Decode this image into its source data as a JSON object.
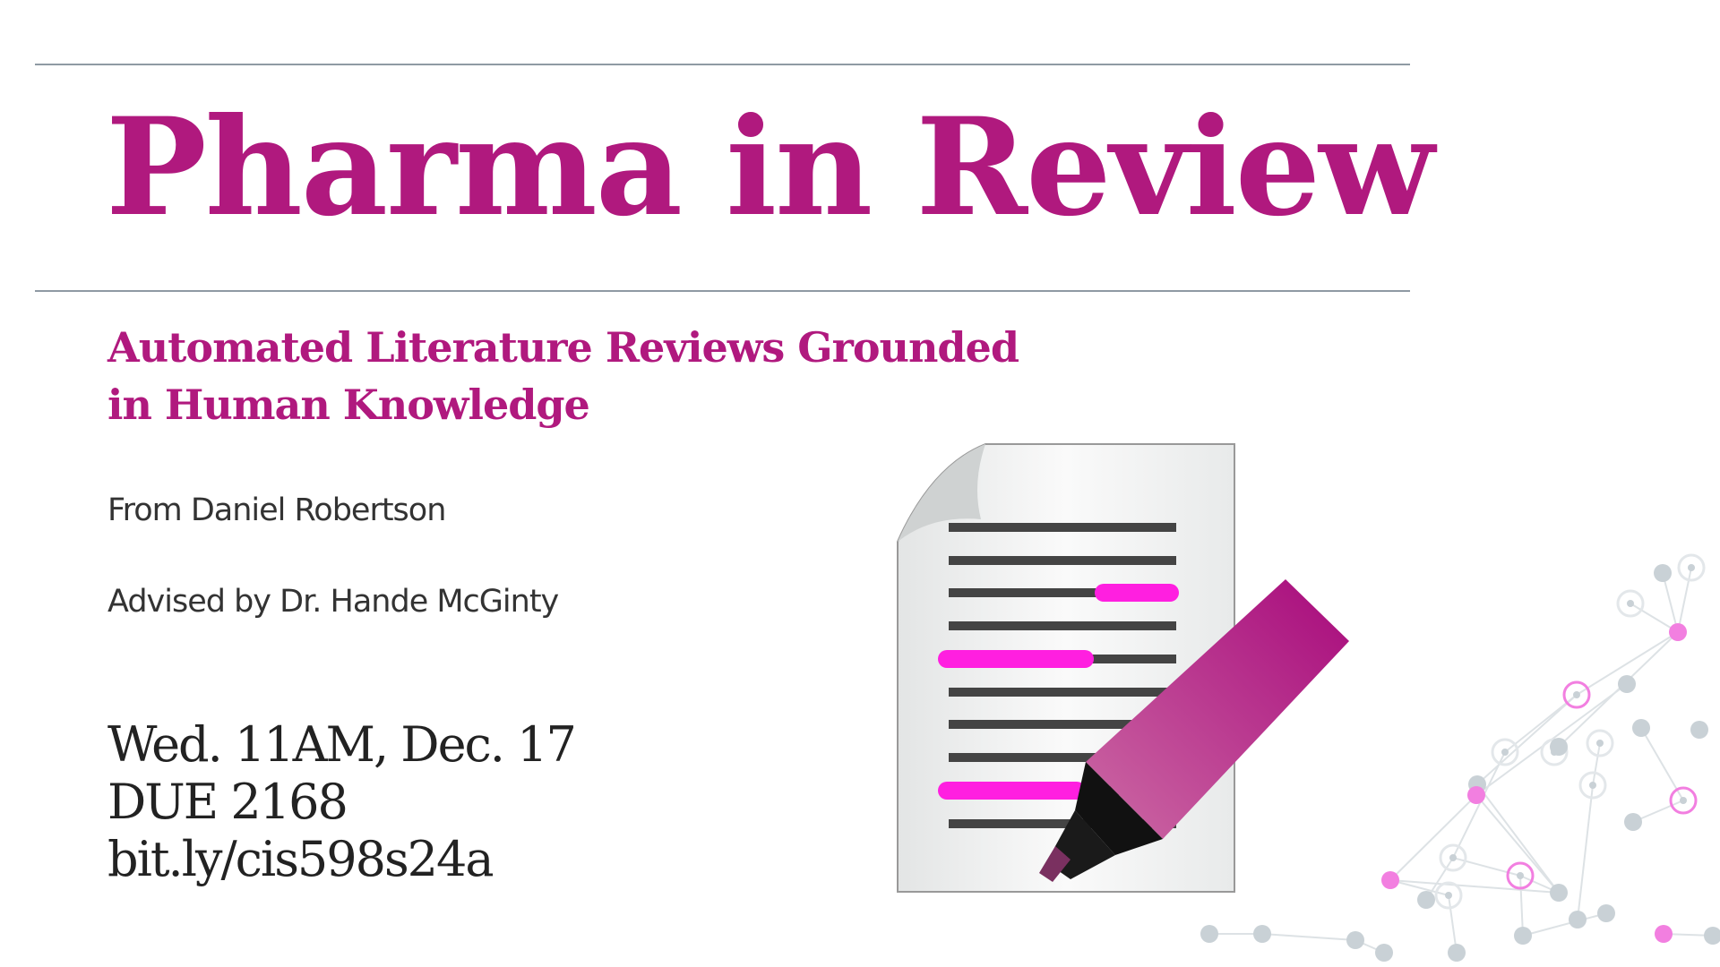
{
  "slide": {
    "title": "Pharma in Review",
    "subtitle_line1": "Automated Literature Reviews Grounded",
    "subtitle_line2": "in Human Knowledge",
    "author": "From Daniel Robertson",
    "advisor": "Advised by Dr. Hande McGinty",
    "time": "Wed. 11AM, Dec. 17",
    "room": "DUE 2168",
    "link": "bit.ly/cis598s24a"
  },
  "colors": {
    "accent": "#b0197e",
    "highlight": "#ff1fe0",
    "rule": "#8f9aa3",
    "network_node": "#c9d1d6",
    "network_accent": "#f27fe0"
  },
  "icons": [
    "document-highlighter-icon",
    "network-graph-decoration"
  ]
}
